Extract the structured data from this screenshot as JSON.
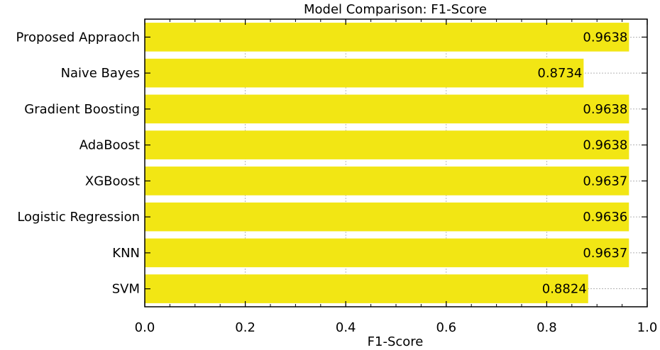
{
  "chart_data": {
    "type": "bar",
    "orientation": "horizontal",
    "title": "Model Comparison: F1-Score",
    "xlabel": "F1-Score",
    "ylabel": "",
    "xlim": [
      0.0,
      1.0
    ],
    "xticks": [
      "0.0",
      "0.2",
      "0.4",
      "0.6",
      "0.8",
      "1.0"
    ],
    "grid": true,
    "bar_color": "#f2e614",
    "categories": [
      "Proposed Appraoch",
      "Naive Bayes",
      "Gradient Boosting",
      "AdaBoost",
      "XGBoost",
      "Logistic Regression",
      "KNN",
      "SVM"
    ],
    "values": [
      0.9638,
      0.8734,
      0.9638,
      0.9638,
      0.9637,
      0.9636,
      0.9637,
      0.8824
    ],
    "value_labels": [
      "0.9638",
      "0.8734",
      "0.9638",
      "0.9638",
      "0.9637",
      "0.9636",
      "0.9637",
      "0.8824"
    ]
  }
}
